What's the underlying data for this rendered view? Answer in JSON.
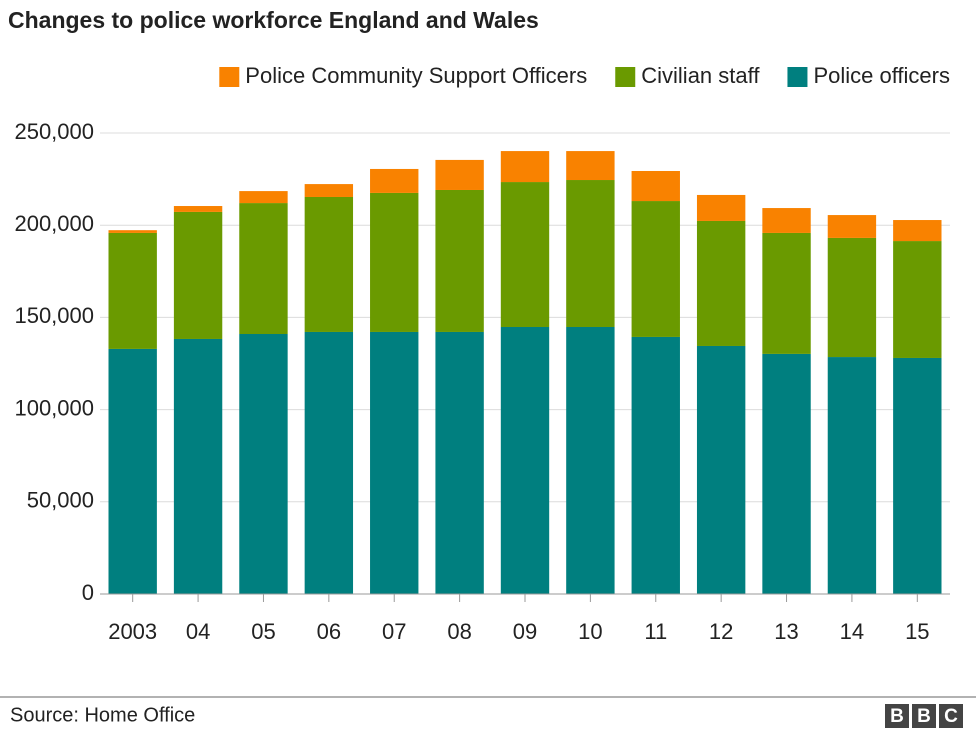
{
  "chart_data": {
    "type": "stacked-bar",
    "title": "Changes to police workforce England and Wales",
    "categories": [
      "2003",
      "04",
      "05",
      "06",
      "07",
      "08",
      "09",
      "10",
      "11",
      "12",
      "13",
      "14",
      "15"
    ],
    "series": [
      {
        "name": "Police officers",
        "color": "#007f7f",
        "values": [
          132900,
          138300,
          141000,
          142100,
          142100,
          142100,
          144800,
          144800,
          139400,
          134500,
          130200,
          128500,
          128000
        ]
      },
      {
        "name": "Civilian staff",
        "color": "#6a9a00",
        "values": [
          62900,
          68900,
          71000,
          73200,
          75400,
          77000,
          78600,
          79700,
          73700,
          67800,
          65600,
          64600,
          63400
        ]
      },
      {
        "name": "Police Community Support Officers",
        "color": "#f98200",
        "values": [
          1500,
          3200,
          6500,
          7000,
          13000,
          16300,
          16800,
          15700,
          16300,
          14100,
          13500,
          12400,
          11400
        ]
      }
    ],
    "ylim": [
      0,
      250000
    ],
    "yticks": [
      0,
      {
        "value": 50000,
        "label": "50,000"
      },
      {
        "value": 100000,
        "label": "100,000"
      },
      {
        "value": 150000,
        "label": "150,000"
      },
      {
        "value": 200000,
        "label": "200,000"
      },
      {
        "value": 250000,
        "label": "250,000"
      }
    ],
    "grid": true,
    "legend": "top-right",
    "source": "Source: Home Office",
    "logo": [
      "B",
      "B",
      "C"
    ]
  }
}
